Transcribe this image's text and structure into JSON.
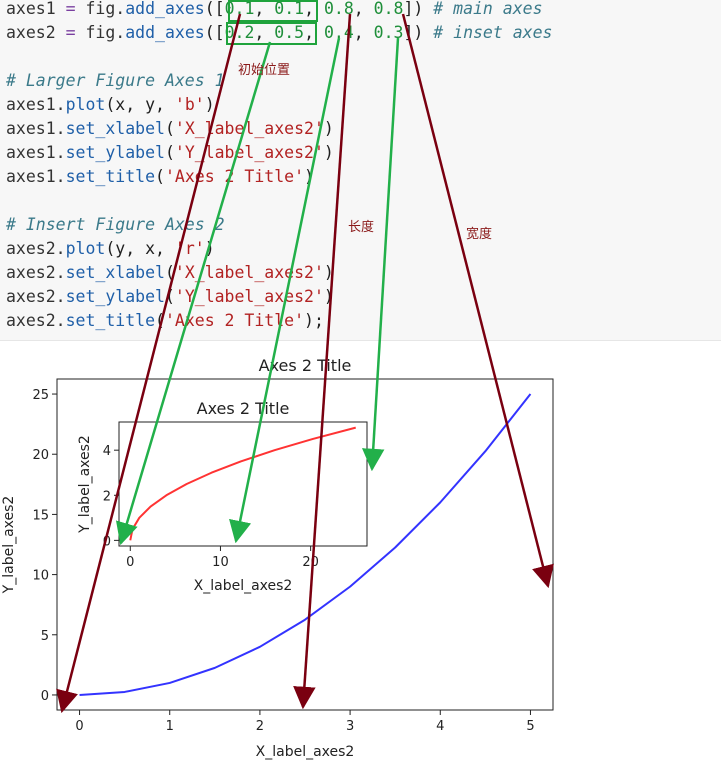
{
  "code": {
    "lines": [
      [
        [
          "axes1 ",
          "tok-kw"
        ],
        [
          "=",
          "tok-eq"
        ],
        [
          " fig.",
          "tok-kw"
        ],
        [
          "add_axes",
          "tok-fn"
        ],
        [
          "([",
          "tok-p"
        ],
        [
          "0.1",
          "tok-num"
        ],
        [
          ", ",
          "tok-p"
        ],
        [
          "0.1",
          "tok-num"
        ],
        [
          ", ",
          "tok-p"
        ],
        [
          "0.8",
          "tok-num"
        ],
        [
          ", ",
          "tok-p"
        ],
        [
          "0.8",
          "tok-num"
        ],
        [
          "]) ",
          "tok-p"
        ],
        [
          "# main axes",
          "tok-cm"
        ]
      ],
      [
        [
          "axes2 ",
          "tok-kw"
        ],
        [
          "=",
          "tok-eq"
        ],
        [
          " fig.",
          "tok-kw"
        ],
        [
          "add_axes",
          "tok-fn"
        ],
        [
          "([",
          "tok-p"
        ],
        [
          "0.2",
          "tok-num"
        ],
        [
          ", ",
          "tok-p"
        ],
        [
          "0.5",
          "tok-num"
        ],
        [
          ", ",
          "tok-p"
        ],
        [
          "0.4",
          "tok-num"
        ],
        [
          ", ",
          "tok-p"
        ],
        [
          "0.3",
          "tok-num"
        ],
        [
          "]) ",
          "tok-p"
        ],
        [
          "# inset axes",
          "tok-cm"
        ]
      ],
      [],
      [
        [
          "# Larger Figure Axes 1",
          "tok-cm"
        ]
      ],
      [
        [
          "axes1.",
          "tok-kw"
        ],
        [
          "plot",
          "tok-fn"
        ],
        [
          "(x, y, ",
          "tok-p"
        ],
        [
          "'b'",
          "tok-str"
        ],
        [
          ")",
          "tok-p"
        ]
      ],
      [
        [
          "axes1.",
          "tok-kw"
        ],
        [
          "set_xlabel",
          "tok-fn"
        ],
        [
          "(",
          "tok-p"
        ],
        [
          "'X_label_axes2'",
          "tok-str"
        ],
        [
          ")",
          "tok-p"
        ]
      ],
      [
        [
          "axes1.",
          "tok-kw"
        ],
        [
          "set_ylabel",
          "tok-fn"
        ],
        [
          "(",
          "tok-p"
        ],
        [
          "'Y_label_axes2'",
          "tok-str"
        ],
        [
          ")",
          "tok-p"
        ]
      ],
      [
        [
          "axes1.",
          "tok-kw"
        ],
        [
          "set_title",
          "tok-fn"
        ],
        [
          "(",
          "tok-p"
        ],
        [
          "'Axes 2 Title'",
          "tok-str"
        ],
        [
          ")",
          "tok-p"
        ]
      ],
      [],
      [
        [
          "# Insert Figure Axes 2",
          "tok-cm"
        ]
      ],
      [
        [
          "axes2.",
          "tok-kw"
        ],
        [
          "plot",
          "tok-fn"
        ],
        [
          "(y, x, ",
          "tok-p"
        ],
        [
          "'r'",
          "tok-str"
        ],
        [
          ")",
          "tok-p"
        ]
      ],
      [
        [
          "axes2.",
          "tok-kw"
        ],
        [
          "set_xlabel",
          "tok-fn"
        ],
        [
          "(",
          "tok-p"
        ],
        [
          "'X_label_axes2'",
          "tok-str"
        ],
        [
          ")",
          "tok-p"
        ]
      ],
      [
        [
          "axes2.",
          "tok-kw"
        ],
        [
          "set_ylabel",
          "tok-fn"
        ],
        [
          "(",
          "tok-p"
        ],
        [
          "'Y_label_axes2'",
          "tok-str"
        ],
        [
          ")",
          "tok-p"
        ]
      ],
      [
        [
          "axes2.",
          "tok-kw"
        ],
        [
          "set_title",
          "tok-fn"
        ],
        [
          "(",
          "tok-p"
        ],
        [
          "'Axes 2 Title'",
          "tok-str"
        ],
        [
          ");",
          "tok-p"
        ]
      ]
    ]
  },
  "annotations": {
    "start_position": "初始位置",
    "length": "长度",
    "width": "宽度",
    "arrow_dark_color": "#7a0010",
    "arrow_green_color": "#22b04a",
    "box_color": "#1fa33c"
  },
  "chart_data": [
    {
      "type": "line",
      "title": "Axes 2 Title",
      "xlabel": "X_label_axes2",
      "ylabel": "Y_label_axes2",
      "xlim": [
        -0.25,
        5.25
      ],
      "ylim": [
        -1.25,
        26.25
      ],
      "xticks": [
        0,
        1,
        2,
        3,
        4,
        5
      ],
      "yticks": [
        0,
        5,
        10,
        15,
        20,
        25
      ],
      "series": [
        {
          "color": "#3333ff",
          "x": [
            0,
            0.5,
            1,
            1.5,
            2,
            2.5,
            3,
            3.5,
            4,
            4.5,
            5
          ],
          "y": [
            0,
            0.25,
            1,
            2.25,
            4,
            6.25,
            9,
            12.25,
            16,
            20.25,
            25
          ]
        }
      ]
    },
    {
      "type": "line",
      "title": "Axes 2 Title",
      "xlabel": "X_label_axes2",
      "ylabel": "Y_label_axes2",
      "xlim": [
        -1.25,
        26.25
      ],
      "ylim": [
        -0.25,
        5.25
      ],
      "xticks": [
        0,
        10,
        20
      ],
      "yticks": [
        0,
        2,
        4
      ],
      "series": [
        {
          "color": "#ff3333",
          "x": [
            0,
            0.25,
            1,
            2.25,
            4,
            6.25,
            9,
            12.25,
            16,
            20.25,
            25
          ],
          "y": [
            0,
            0.5,
            1,
            1.5,
            2,
            2.5,
            3,
            3.5,
            4,
            4.5,
            5
          ]
        }
      ]
    }
  ]
}
